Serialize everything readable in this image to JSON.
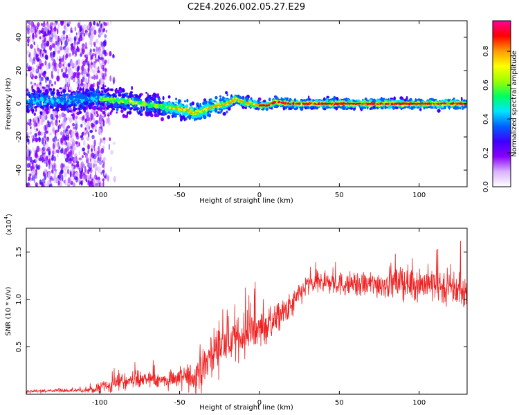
{
  "title": "C2E4.2026.002.05.27.E29",
  "chart_data": [
    {
      "type": "heatmap",
      "xlabel": "Height of straight line (km)",
      "ylabel": "Frequency (Hz)",
      "xlim": [
        -146,
        130
      ],
      "ylim": [
        -50,
        50
      ],
      "xticks": [
        -100,
        -50,
        0,
        50,
        100
      ],
      "yticks": [
        -40,
        -20,
        0,
        20,
        40
      ],
      "grid": false,
      "colorbar": {
        "label": "Normalized spectral amplitude",
        "range": [
          0.0,
          0.98
        ],
        "ticks": [
          "0.0",
          "0.2",
          "0.4",
          "0.6",
          "0.8"
        ],
        "colors": [
          "#ffffff",
          "#d9b3ff",
          "#8a00ff",
          "#3c00ff",
          "#0060ff",
          "#00e6ff",
          "#00ff60",
          "#9cff00",
          "#ffff00",
          "#ff9a00",
          "#ff0000",
          "#ff0099"
        ]
      },
      "ridge": {
        "x": [
          -146,
          -120,
          -100,
          -80,
          -60,
          -50,
          -45,
          -40,
          -35,
          -30,
          -20,
          -15,
          -10,
          0,
          5,
          10,
          20,
          40,
          60,
          80,
          100,
          130
        ],
        "y": [
          2,
          2,
          3,
          1,
          -2,
          -3,
          -4,
          -6,
          -4,
          -2,
          0,
          3,
          1,
          -1,
          -1,
          1,
          0,
          0,
          0,
          0,
          0,
          0
        ]
      }
    },
    {
      "type": "line",
      "xlabel": "Height of straight line (km)",
      "ylabel": "SNR (10 * v/v)",
      "yscale_label": "(x10",
      "yscale_exp": "4",
      "xlim": [
        -146,
        130
      ],
      "ylim": [
        0,
        1.75
      ],
      "xticks": [
        -100,
        -50,
        0,
        50,
        100
      ],
      "yticks": [
        "0.5",
        "1.0",
        "1.5"
      ],
      "grid": false,
      "series_color": "#ee2222",
      "envelope_mean": {
        "x": [
          -146,
          -110,
          -100,
          -90,
          -80,
          -70,
          -60,
          -50,
          -40,
          -35,
          -30,
          -20,
          -10,
          0,
          10,
          20,
          25,
          30,
          40,
          60,
          80,
          100,
          110,
          130
        ],
        "y": [
          0.03,
          0.04,
          0.06,
          0.11,
          0.16,
          0.15,
          0.15,
          0.17,
          0.18,
          0.26,
          0.45,
          0.55,
          0.62,
          0.68,
          0.78,
          0.92,
          1.05,
          1.15,
          1.18,
          1.15,
          1.17,
          1.17,
          1.15,
          1.08
        ]
      },
      "envelope_noise": {
        "x": [
          -146,
          -110,
          -90,
          -60,
          -40,
          -30,
          -10,
          10,
          30,
          60,
          100,
          130
        ],
        "y": [
          0.02,
          0.03,
          0.1,
          0.13,
          0.2,
          0.3,
          0.25,
          0.22,
          0.15,
          0.16,
          0.23,
          0.26
        ]
      }
    }
  ]
}
